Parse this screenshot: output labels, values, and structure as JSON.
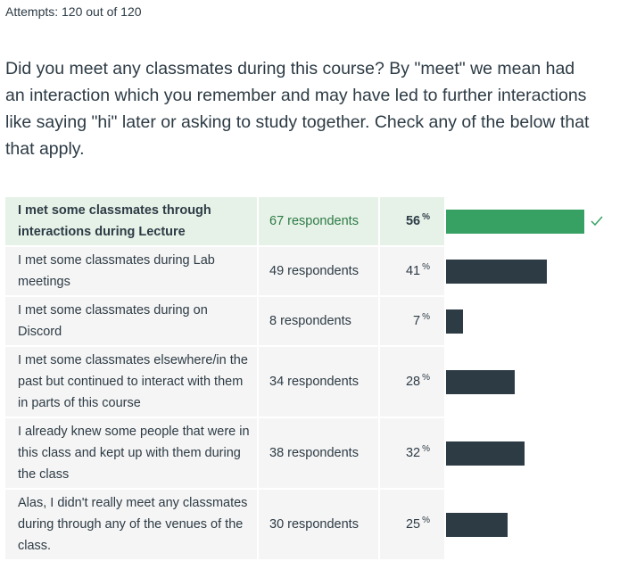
{
  "attempts_text": "Attempts: 120 out of 120",
  "question": "Did you meet any classmates during this course? By \"meet\" we mean had an interaction which you remember and may have led to further interactions like saying \"hi\" later or asking to study together. Check any of the below that that apply.",
  "percent_symbol": "%",
  "colors": {
    "correct_bar": "#37a163",
    "bar": "#2d3b45",
    "correct_bg": "#e6f2e8",
    "row_bg": "#f5f5f5"
  },
  "answers": [
    {
      "text": "I met some classmates through interactions during Lecture",
      "respondents": "67 respondents",
      "percent": "56",
      "fraction": 0.56,
      "correct": true
    },
    {
      "text": "I met some classmates during Lab meetings",
      "respondents": "49 respondents",
      "percent": "41",
      "fraction": 0.41,
      "correct": false
    },
    {
      "text": "I met some classmates during on Discord",
      "respondents": "8 respondents",
      "percent": "7",
      "fraction": 0.07,
      "correct": false
    },
    {
      "text": "I met some classmates elsewhere/in the past but continued to interact with them in parts of this course",
      "respondents": "34 respondents",
      "percent": "28",
      "fraction": 0.28,
      "correct": false
    },
    {
      "text": "I already knew some people that were in this class and kept up with them during the class",
      "respondents": "38 respondents",
      "percent": "32",
      "fraction": 0.32,
      "correct": false
    },
    {
      "text": "Alas, I didn't really meet any classmates during through any of the venues of the class.",
      "respondents": "30 respondents",
      "percent": "25",
      "fraction": 0.25,
      "correct": false
    }
  ]
}
